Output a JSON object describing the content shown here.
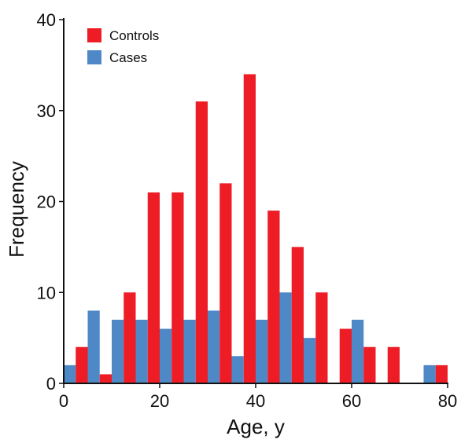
{
  "chart_data": {
    "type": "bar",
    "title": "",
    "xlabel": "Age, y",
    "ylabel": "Frequency",
    "xlim": [
      0,
      80
    ],
    "ylim": [
      0,
      40
    ],
    "x_ticks": [
      0,
      20,
      40,
      60,
      80
    ],
    "y_ticks": [
      0,
      10,
      20,
      30,
      40
    ],
    "bin_width": 5,
    "bin_starts": [
      0,
      5,
      10,
      15,
      20,
      25,
      30,
      35,
      40,
      45,
      50,
      55,
      60,
      65,
      70,
      75
    ],
    "grid": false,
    "legend_position": "top-left",
    "series": [
      {
        "name": "Controls",
        "color": "#ee1c25",
        "values": [
          4,
          1,
          10,
          21,
          21,
          31,
          22,
          34,
          19,
          15,
          10,
          6,
          4,
          4,
          0,
          2
        ]
      },
      {
        "name": "Cases",
        "color": "#4f88c6",
        "values": [
          2,
          8,
          7,
          7,
          6,
          7,
          8,
          3,
          7,
          10,
          5,
          0,
          7,
          0,
          0,
          2
        ]
      }
    ],
    "legend": [
      {
        "label": "Controls",
        "color": "#ee1c25"
      },
      {
        "label": "Cases",
        "color": "#4f88c6"
      }
    ]
  }
}
